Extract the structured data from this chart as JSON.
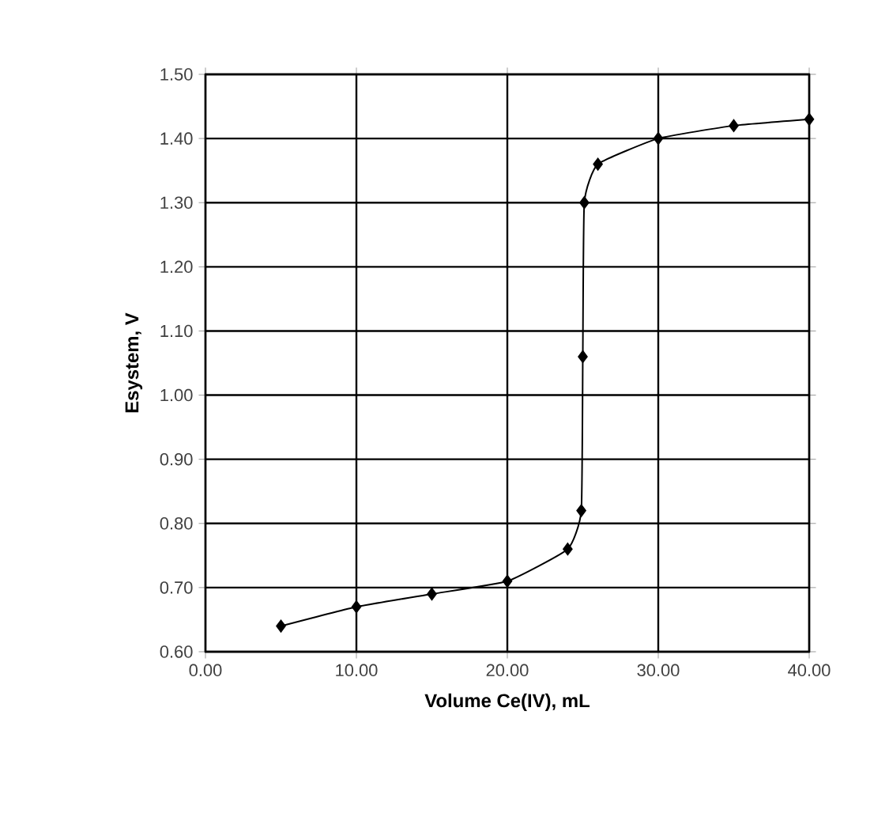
{
  "chart_data": {
    "type": "line",
    "xlabel": "Volume Ce(IV), mL",
    "ylabel": "Esystem, V",
    "x": [
      5,
      10,
      15,
      20,
      24,
      24.9,
      25,
      25.1,
      26,
      30,
      35,
      40
    ],
    "values": [
      0.64,
      0.67,
      0.69,
      0.71,
      0.76,
      0.82,
      1.06,
      1.3,
      1.36,
      1.4,
      1.42,
      1.43
    ],
    "color": "#000000",
    "marker": "diamond",
    "grid": true,
    "xlim": [
      0,
      40
    ],
    "ylim": [
      0.6,
      1.5
    ],
    "xticks": [
      {
        "value": 0,
        "label": "0.00"
      },
      {
        "value": 10,
        "label": "10.00"
      },
      {
        "value": 20,
        "label": "20.00"
      },
      {
        "value": 30,
        "label": "30.00"
      },
      {
        "value": 40,
        "label": "40.00"
      }
    ],
    "yticks": [
      {
        "value": 0.6,
        "label": "0.60"
      },
      {
        "value": 0.7,
        "label": "0.70"
      },
      {
        "value": 0.8,
        "label": "0.80"
      },
      {
        "value": 0.9,
        "label": "0.90"
      },
      {
        "value": 1.0,
        "label": "1.00"
      },
      {
        "value": 1.1,
        "label": "1.10"
      },
      {
        "value": 1.2,
        "label": "1.20"
      },
      {
        "value": 1.3,
        "label": "1.30"
      },
      {
        "value": 1.4,
        "label": "1.40"
      },
      {
        "value": 1.5,
        "label": "1.50"
      }
    ]
  }
}
